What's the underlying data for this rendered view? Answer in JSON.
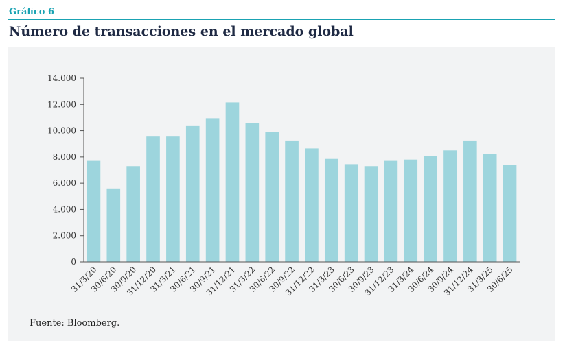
{
  "header": {
    "label": "Gráfico 6",
    "title": "Número de transacciones en el mercado global"
  },
  "footer": {
    "source": "Fuente: Bloomberg."
  },
  "colors": {
    "bar": "#9dd5dd",
    "accent": "#1aa3b3",
    "panel": "#f2f3f4"
  },
  "chart_data": {
    "type": "bar",
    "title": "Número de transacciones en el mercado global",
    "xlabel": "",
    "ylabel": "",
    "ylim": [
      0,
      14000
    ],
    "yticks": [
      0,
      2000,
      4000,
      6000,
      8000,
      10000,
      12000,
      14000
    ],
    "ytick_labels": [
      "0",
      "2.000",
      "4.000",
      "6.000",
      "8.000",
      "10.000",
      "12.000",
      "14.000"
    ],
    "grid": false,
    "categories": [
      "31/3/20",
      "30/6/20",
      "30/9/20",
      "31/12/20",
      "31/3/21",
      "30/6/21",
      "30/9/21",
      "31/12/21",
      "31/3/22",
      "30/6/22",
      "30/9/22",
      "31/12/22",
      "31/3/23",
      "30/6/23",
      "30/9/23",
      "31/12/23",
      "31/3/24",
      "30/6/24",
      "30/9/24",
      "31/12/24",
      "31/3/25",
      "30/6/25"
    ],
    "values": [
      7700,
      5600,
      7300,
      9550,
      9550,
      10350,
      10950,
      12150,
      10600,
      9900,
      9250,
      8650,
      7850,
      7450,
      7300,
      7700,
      7800,
      8050,
      8500,
      9250,
      8250,
      7400
    ]
  }
}
